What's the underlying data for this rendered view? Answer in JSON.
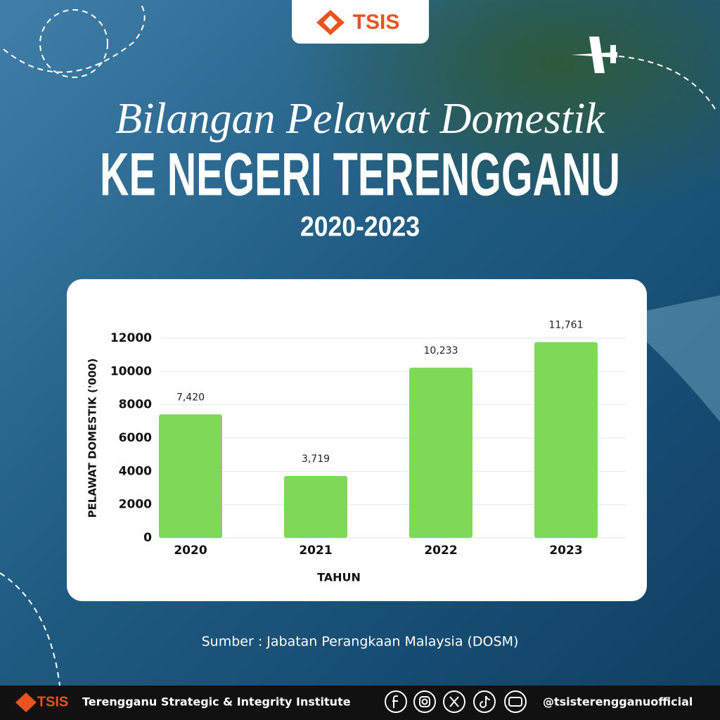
{
  "header": {
    "logo": "TSIS",
    "script_title": "Bilangan Pelawat Domestik",
    "title": "KE NEGERI TERENGGANU",
    "subtitle": "2020-2023"
  },
  "chart_data": {
    "type": "bar",
    "categories": [
      "2020",
      "2021",
      "2022",
      "2023"
    ],
    "values": [
      7420,
      3719,
      10233,
      11761
    ],
    "value_labels": [
      "7,420",
      "3,719",
      "10,233",
      "11,761"
    ],
    "color": "#7ed957",
    "ylim": [
      0,
      12000
    ],
    "yticks": [
      0,
      2000,
      4000,
      6000,
      8000,
      10000,
      12000
    ],
    "grid": true,
    "xlabel": "TAHUN",
    "ylabel": "PELAWAT DOMESTIK ('000)"
  },
  "source": "Sumber : Jabatan Perangkaan Malaysia (DOSM)",
  "footer": {
    "logo": "TSIS",
    "name": "Terengganu Strategic & Integrity Institute",
    "handle": "@tsisterengganuofficial"
  }
}
